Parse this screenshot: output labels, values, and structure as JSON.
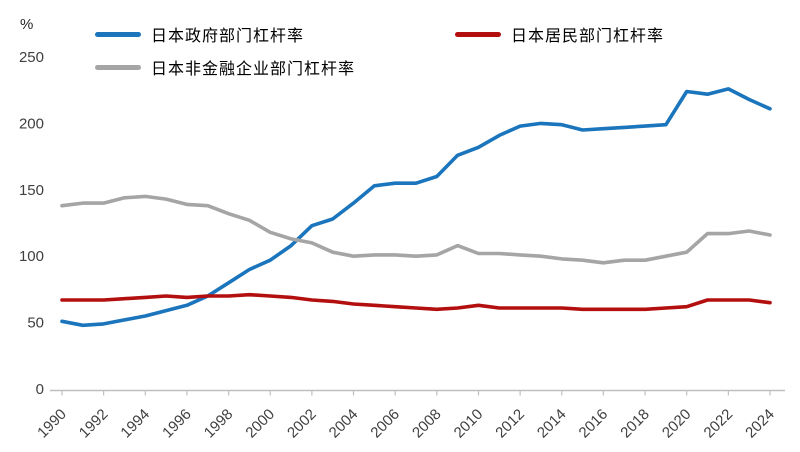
{
  "chart_data": {
    "type": "line",
    "title": "",
    "ylabel": "%",
    "xlabel": "",
    "ylim": [
      0,
      250
    ],
    "yticks": [
      0,
      50,
      100,
      150,
      200,
      250
    ],
    "xticks_every": 2,
    "grid": false,
    "legend_position": "top",
    "x": [
      1990,
      1991,
      1992,
      1993,
      1994,
      1995,
      1996,
      1997,
      1998,
      1999,
      2000,
      2001,
      2002,
      2003,
      2004,
      2005,
      2006,
      2007,
      2008,
      2009,
      2010,
      2011,
      2012,
      2013,
      2014,
      2015,
      2016,
      2017,
      2018,
      2019,
      2020,
      2021,
      2022,
      2023,
      2024
    ],
    "series": [
      {
        "name": "日本政府部门杠杆率",
        "color": "#1b75bc",
        "values": [
          51,
          48,
          49,
          52,
          55,
          59,
          63,
          70,
          80,
          90,
          97,
          108,
          123,
          128,
          140,
          153,
          155,
          155,
          160,
          176,
          182,
          191,
          198,
          200,
          199,
          195,
          196,
          197,
          198,
          199,
          224,
          222,
          226,
          218,
          211
        ]
      },
      {
        "name": "日本居民部门杠杆率",
        "color": "#b20f0e",
        "values": [
          67,
          67,
          67,
          68,
          69,
          70,
          69,
          70,
          70,
          71,
          70,
          69,
          67,
          66,
          64,
          63,
          62,
          61,
          60,
          61,
          63,
          61,
          61,
          61,
          61,
          60,
          60,
          60,
          60,
          61,
          62,
          67,
          67,
          67,
          65
        ]
      },
      {
        "name": "日本非金融企业部门杠杆率",
        "color": "#a5a5a5",
        "values": [
          138,
          140,
          140,
          144,
          145,
          143,
          139,
          138,
          132,
          127,
          118,
          113,
          110,
          103,
          100,
          101,
          101,
          100,
          101,
          108,
          102,
          102,
          101,
          100,
          98,
          97,
          95,
          97,
          97,
          100,
          103,
          117,
          117,
          119,
          116
        ]
      }
    ]
  }
}
